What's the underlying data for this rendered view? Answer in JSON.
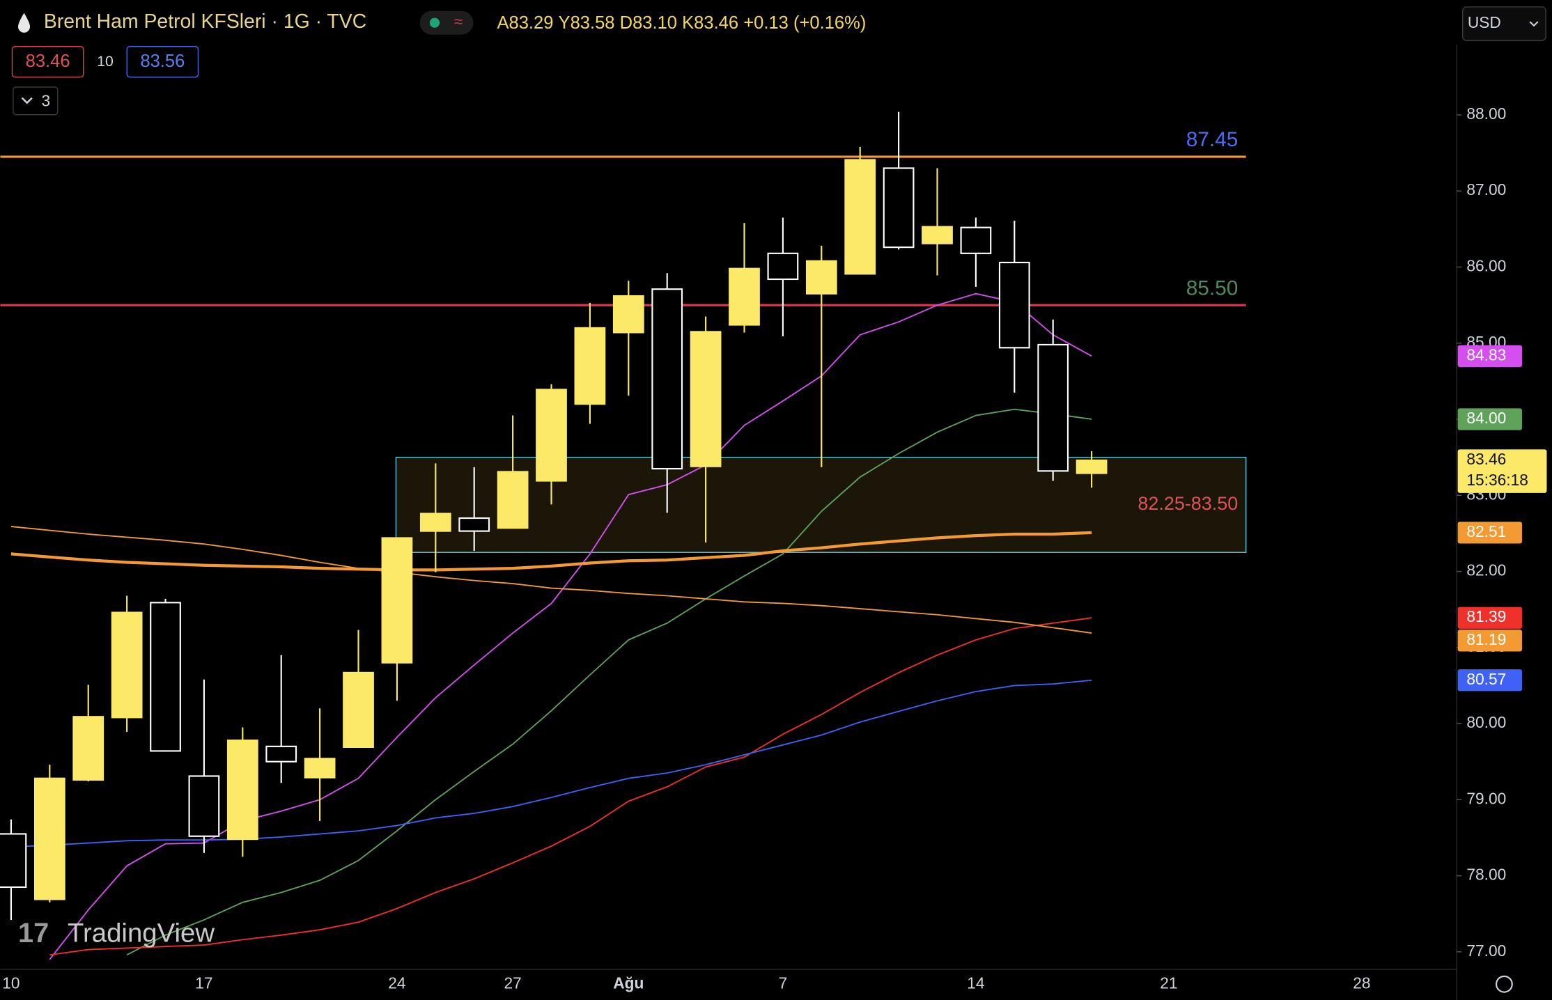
{
  "header": {
    "title": "Brent Ham Petrol KFSleri · 1G · TVC",
    "ohlc": [
      "A83.29",
      "Y83.58",
      "D83.10",
      "K83.46"
    ],
    "change": "+0.13 (+0.16%)",
    "sell": "83.46",
    "spread": "10",
    "buy": "83.56",
    "collapse": "3",
    "currency": "USD",
    "logo": "TradingView"
  },
  "chart_data": {
    "type": "candlestick",
    "open": [
      78.55,
      77.69,
      79.26,
      80.08,
      81.59,
      79.31,
      78.48,
      79.7,
      79.29,
      79.69,
      80.8,
      82.53,
      82.7,
      82.57,
      83.19,
      84.2,
      85.14,
      85.71,
      83.38,
      85.24,
      86.18,
      85.65,
      85.91,
      87.3,
      86.31,
      86.52,
      86.06,
      84.98,
      83.29
    ],
    "high": [
      78.74,
      79.46,
      80.51,
      81.68,
      81.64,
      80.58,
      79.95,
      80.9,
      80.2,
      81.23,
      82.44,
      83.42,
      83.37,
      84.05,
      84.46,
      85.53,
      85.82,
      85.92,
      85.35,
      86.58,
      86.65,
      86.28,
      87.58,
      88.04,
      87.3,
      86.65,
      86.61,
      85.31,
      83.58
    ],
    "low": [
      77.42,
      77.65,
      79.24,
      79.89,
      79.63,
      78.3,
      78.25,
      79.22,
      78.72,
      79.69,
      80.3,
      81.99,
      82.27,
      82.57,
      82.88,
      83.94,
      84.31,
      82.77,
      82.38,
      85.14,
      85.09,
      83.37,
      85.91,
      86.23,
      85.89,
      85.74,
      84.35,
      83.19,
      83.1
    ],
    "close": [
      77.85,
      79.28,
      80.09,
      81.46,
      79.64,
      78.52,
      79.78,
      79.5,
      79.54,
      80.67,
      82.44,
      82.76,
      82.53,
      83.31,
      84.39,
      85.2,
      85.62,
      83.35,
      85.15,
      85.98,
      85.84,
      86.08,
      87.41,
      86.26,
      86.53,
      86.18,
      84.94,
      83.32,
      83.46
    ],
    "up_color": "#fde968",
    "down_color": "#ffffff",
    "xlim": [
      -0.28,
      37.41
    ],
    "xticks": [
      {
        "value": 0,
        "label": "10"
      },
      {
        "value": 5,
        "label": "17"
      },
      {
        "value": 10,
        "label": "24"
      },
      {
        "value": 13,
        "label": "27"
      },
      {
        "value": 16,
        "label": "Ağu"
      },
      {
        "value": 20,
        "label": "7"
      },
      {
        "value": 25,
        "label": "14"
      },
      {
        "value": 30,
        "label": "21"
      },
      {
        "value": 35,
        "label": "28"
      }
    ],
    "ylim": [
      76.77,
      88.99
    ],
    "yticks": [
      {
        "value": 77,
        "label": "77.00"
      },
      {
        "value": 78,
        "label": "78.00"
      },
      {
        "value": 79,
        "label": "79.00"
      },
      {
        "value": 80,
        "label": "80.00"
      },
      {
        "value": 81,
        "label": "81.00"
      },
      {
        "value": 82,
        "label": "82.00"
      },
      {
        "value": 83,
        "label": "83.00"
      },
      {
        "value": 84,
        "label": "84.00"
      },
      {
        "value": 85,
        "label": "85.00"
      },
      {
        "value": 86,
        "label": "86.00"
      },
      {
        "value": 87,
        "label": "87.00"
      },
      {
        "value": 88,
        "label": "88.00"
      }
    ],
    "indicators": [
      {
        "color": "#d54ff0",
        "width": 1.3,
        "last_label": "84.83",
        "values": [
          null,
          76.9,
          77.55,
          78.13,
          78.42,
          78.43,
          78.72,
          78.85,
          79.0,
          79.28,
          79.82,
          80.34,
          80.77,
          81.19,
          81.58,
          82.23,
          83.01,
          83.14,
          83.4,
          83.92,
          84.24,
          84.57,
          85.11,
          85.28,
          85.5,
          85.65,
          85.54,
          85.11,
          84.83
        ]
      },
      {
        "color": "#5fa35a",
        "width": 1.3,
        "last_label": "84.00",
        "values": [
          null,
          null,
          null,
          76.96,
          77.22,
          77.42,
          77.65,
          77.78,
          77.94,
          78.2,
          78.59,
          79.0,
          79.37,
          79.73,
          80.17,
          80.64,
          81.1,
          81.32,
          81.64,
          81.94,
          82.23,
          82.79,
          83.24,
          83.55,
          83.83,
          84.05,
          84.13,
          84.07,
          84.0
        ]
      },
      {
        "color": "#f0302a",
        "width": 1.3,
        "last_label": "81.39",
        "values": [
          null,
          76.96,
          77.03,
          77.05,
          77.07,
          77.09,
          77.16,
          77.22,
          77.29,
          77.39,
          77.57,
          77.78,
          77.96,
          78.17,
          78.39,
          78.65,
          78.98,
          79.17,
          79.43,
          79.56,
          79.86,
          80.12,
          80.41,
          80.67,
          80.9,
          81.1,
          81.25,
          81.32,
          81.39
        ]
      },
      {
        "color": "#3d62f5",
        "width": 1.3,
        "last_label": "80.57",
        "values": [
          78.38,
          78.4,
          78.43,
          78.46,
          78.47,
          78.47,
          78.48,
          78.51,
          78.55,
          78.59,
          78.66,
          78.76,
          78.82,
          78.91,
          79.03,
          79.16,
          79.28,
          79.35,
          79.46,
          79.59,
          79.72,
          79.85,
          80.02,
          80.16,
          80.3,
          80.42,
          80.5,
          80.52,
          80.57
        ]
      },
      {
        "color": "#f39a33",
        "width": 3,
        "last_label": "82.51",
        "values": [
          82.23,
          82.19,
          82.15,
          82.12,
          82.1,
          82.08,
          82.07,
          82.06,
          82.04,
          82.03,
          82.02,
          82.02,
          82.03,
          82.04,
          82.07,
          82.11,
          82.14,
          82.15,
          82.18,
          82.21,
          82.27,
          82.31,
          82.36,
          82.4,
          82.44,
          82.47,
          82.49,
          82.49,
          82.51
        ]
      },
      {
        "color": "#f39a33",
        "width": 1.3,
        "last_label": "81.19",
        "values": [
          82.59,
          82.54,
          82.49,
          82.45,
          82.41,
          82.36,
          82.29,
          82.21,
          82.12,
          82.04,
          81.99,
          81.93,
          81.88,
          81.84,
          81.78,
          81.75,
          81.71,
          81.68,
          81.64,
          81.6,
          81.58,
          81.55,
          81.51,
          81.47,
          81.43,
          81.38,
          81.33,
          81.26,
          81.19
        ]
      }
    ],
    "levels": [
      {
        "value": 87.45,
        "color": "#f39a33",
        "label_color": "#4a6cf7"
      },
      {
        "value": {
          "value": 85.5,
          "label": "85.50"
        },
        "color": "#f0304a",
        "label_color": "#4f8a5a"
      }
    ],
    "zone": {
      "range": [
        82.25,
        83.5
      ],
      "label": "82.25-83.50",
      "start": 10,
      "end": 32
    },
    "last_price": {
      "label": "83.46",
      "countdown": "15:36:18"
    }
  }
}
